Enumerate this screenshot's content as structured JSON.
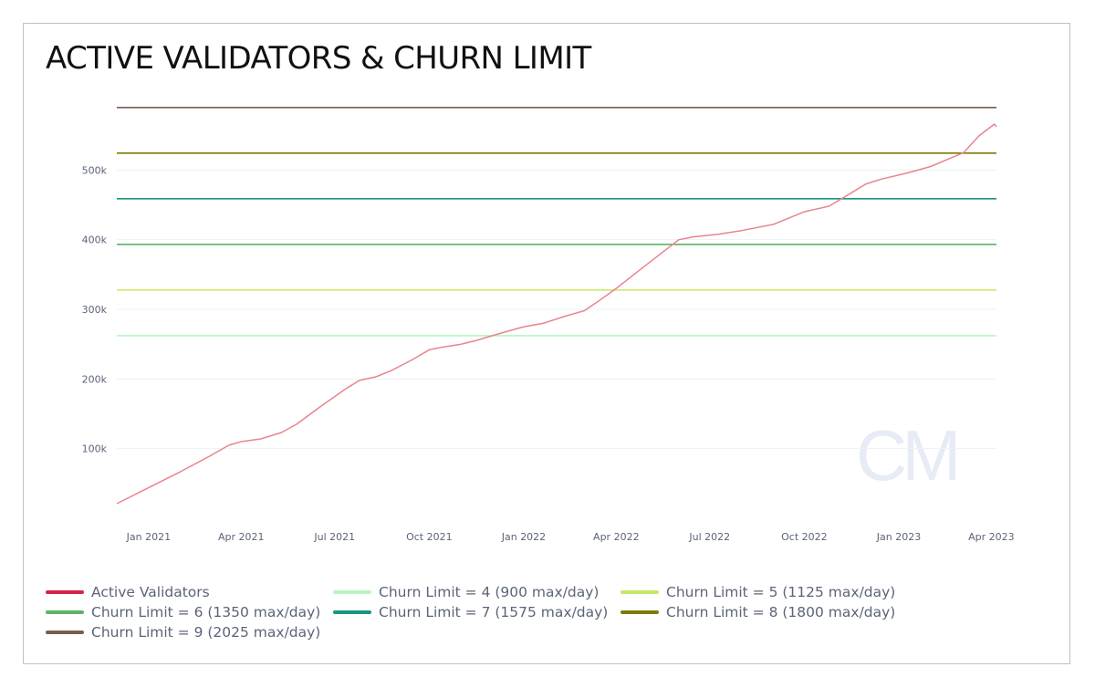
{
  "title": "ACTIVE VALIDATORS & CHURN LIMIT",
  "watermark": "CM",
  "chart_data": {
    "type": "line",
    "y_ticks": [
      100000,
      200000,
      300000,
      400000,
      500000
    ],
    "y_tick_labels": [
      "100k",
      "200k",
      "300k",
      "400k",
      "500k"
    ],
    "ylim": [
      0,
      600000
    ],
    "x_tick_labels": [
      "Jan 2021",
      "Apr 2021",
      "Jul 2021",
      "Oct 2021",
      "Jan 2022",
      "Apr 2022",
      "Jul 2022",
      "Oct 2022",
      "Jan 2023",
      "Apr 2023"
    ],
    "x_ticks": [
      "2021-01-01",
      "2021-04-01",
      "2021-07-01",
      "2021-10-01",
      "2022-01-01",
      "2022-04-01",
      "2022-07-01",
      "2022-10-01",
      "2023-01-01",
      "2023-04-01"
    ],
    "xlim": [
      "2020-12-01",
      "2023-04-06"
    ],
    "grid": true,
    "legend_position": "bottom",
    "series": [
      {
        "name": "Active Validators",
        "color": "#e8848f",
        "legend_color": "#d6214f",
        "points": [
          [
            "2020-12-01",
            21000
          ],
          [
            "2021-01-01",
            44000
          ],
          [
            "2021-02-01",
            67000
          ],
          [
            "2021-03-01",
            89000
          ],
          [
            "2021-03-20",
            105000
          ],
          [
            "2021-04-01",
            110000
          ],
          [
            "2021-04-20",
            114000
          ],
          [
            "2021-05-10",
            123000
          ],
          [
            "2021-05-25",
            135000
          ],
          [
            "2021-06-15",
            158000
          ],
          [
            "2021-07-10",
            184000
          ],
          [
            "2021-07-25",
            198000
          ],
          [
            "2021-08-10",
            203000
          ],
          [
            "2021-08-25",
            212000
          ],
          [
            "2021-09-15",
            228000
          ],
          [
            "2021-10-01",
            242000
          ],
          [
            "2021-10-15",
            246000
          ],
          [
            "2021-11-01",
            250000
          ],
          [
            "2021-11-15",
            255000
          ],
          [
            "2021-12-01",
            262000
          ],
          [
            "2021-12-20",
            270000
          ],
          [
            "2022-01-01",
            275000
          ],
          [
            "2022-01-20",
            280000
          ],
          [
            "2022-02-10",
            290000
          ],
          [
            "2022-03-01",
            298000
          ],
          [
            "2022-03-15",
            312000
          ],
          [
            "2022-04-01",
            330000
          ],
          [
            "2022-04-20",
            352000
          ],
          [
            "2022-05-10",
            375000
          ],
          [
            "2022-06-01",
            400000
          ],
          [
            "2022-06-15",
            404000
          ],
          [
            "2022-07-10",
            408000
          ],
          [
            "2022-08-01",
            413000
          ],
          [
            "2022-09-01",
            422000
          ],
          [
            "2022-10-01",
            440000
          ],
          [
            "2022-10-25",
            448000
          ],
          [
            "2022-11-10",
            462000
          ],
          [
            "2022-11-30",
            480000
          ],
          [
            "2022-12-15",
            487000
          ],
          [
            "2023-01-10",
            496000
          ],
          [
            "2023-02-01",
            505000
          ],
          [
            "2023-02-20",
            517000
          ],
          [
            "2023-03-05",
            525000
          ],
          [
            "2023-03-20",
            549000
          ],
          [
            "2023-04-04",
            566000
          ],
          [
            "2023-04-06",
            562000
          ]
        ]
      },
      {
        "name": "Churn Limit = 4 (900 max/day)",
        "color": "#b6f5c2",
        "value": 262144
      },
      {
        "name": "Churn Limit = 5 (1125 max/day)",
        "color": "#c6e866",
        "value": 327680
      },
      {
        "name": "Churn Limit = 6 (1350 max/day)",
        "color": "#5bb564",
        "value": 393216
      },
      {
        "name": "Churn Limit = 7 (1575 max/day)",
        "color": "#16977f",
        "value": 458752
      },
      {
        "name": "Churn Limit = 8 (1800 max/day)",
        "color": "#7c7b07",
        "value": 524288
      },
      {
        "name": "Churn Limit = 9 (2025 max/day)",
        "color": "#7a5c53",
        "value": 589824
      }
    ]
  }
}
